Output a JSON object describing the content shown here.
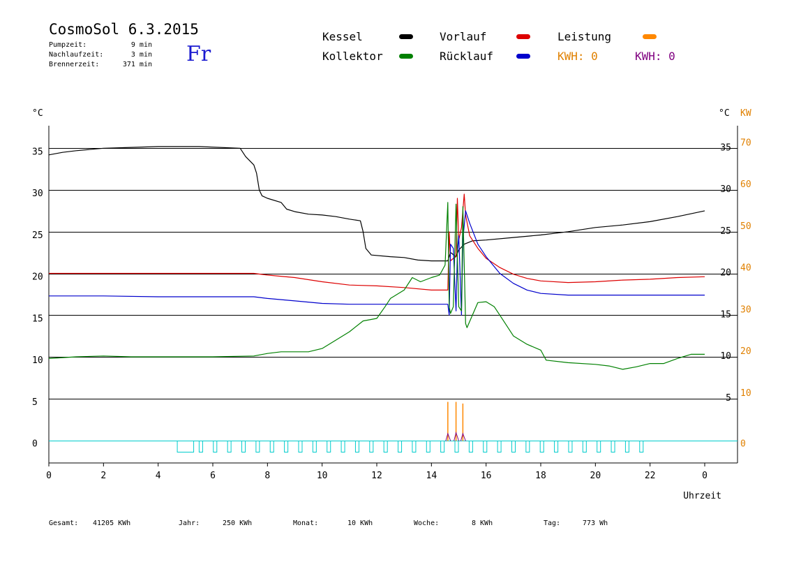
{
  "header": {
    "title": "CosmoSol 6.3.2015",
    "day": "Fr",
    "info": [
      {
        "label": "Pumpzeit:",
        "value": "9 min"
      },
      {
        "label": "Nachlaufzeit:",
        "value": "3 min"
      },
      {
        "label": "Brennerzeit:",
        "value": "371 min"
      }
    ]
  },
  "legend": {
    "kessel": {
      "label": "Kessel",
      "color": "#000000"
    },
    "vorlauf": {
      "label": "Vorlauf",
      "color": "#dd0000"
    },
    "leistung": {
      "label": "Leistung",
      "color": "#ff8800"
    },
    "kollektor": {
      "label": "Kollektor",
      "color": "#008000"
    },
    "ruecklauf": {
      "label": "Rücklauf",
      "color": "#0000cc"
    },
    "kwh1": {
      "label": "KWH: 0",
      "color": "#e08000"
    },
    "kwh2": {
      "label": "KWH: 0",
      "color": "#800080"
    }
  },
  "footer": [
    {
      "label": "Gesamt:",
      "value": "41205 KWh"
    },
    {
      "label": "Jahr:",
      "value": "250 KWh"
    },
    {
      "label": "Monat:",
      "value": "10 KWh"
    },
    {
      "label": "Woche:",
      "value": "8 KWh"
    },
    {
      "label": "Tag:",
      "value": "773 Wh"
    }
  ],
  "chart_data": {
    "type": "line",
    "xlabel": "Uhrzeit",
    "ylabel_left": "°C",
    "ylabel_right": "°C",
    "ylabel_right2": "KW",
    "xlim": [
      0,
      24
    ],
    "ylim": [
      -2.7,
      38
    ],
    "x_ticks": [
      "0",
      "2",
      "4",
      "6",
      "8",
      "10",
      "12",
      "14",
      "16",
      "18",
      "20",
      "22",
      "0"
    ],
    "y_ticks_left": [
      "0",
      "5",
      "10",
      "15",
      "20",
      "25",
      "30",
      "35"
    ],
    "y_ticks_right": [
      "5",
      "10",
      "15",
      "20",
      "25",
      "30",
      "35"
    ],
    "y_ticks_kw": [
      "0",
      "10",
      "20",
      "30",
      "40",
      "50",
      "60",
      "70"
    ],
    "grid_y": [
      0,
      5,
      10,
      15,
      20,
      25,
      30,
      35
    ],
    "series": [
      {
        "name": "Kessel",
        "color": "#000000",
        "points": [
          [
            0,
            34.2
          ],
          [
            0.5,
            34.5
          ],
          [
            1,
            34.7
          ],
          [
            2,
            35.0
          ],
          [
            3,
            35.1
          ],
          [
            4,
            35.2
          ],
          [
            5,
            35.2
          ],
          [
            5.5,
            35.2
          ],
          [
            7.0,
            35.0
          ],
          [
            7.2,
            34.0
          ],
          [
            7.5,
            33.0
          ],
          [
            7.6,
            32.0
          ],
          [
            7.7,
            30.0
          ],
          [
            7.8,
            29.3
          ],
          [
            8.0,
            29.0
          ],
          [
            8.5,
            28.5
          ],
          [
            8.7,
            27.7
          ],
          [
            9.0,
            27.4
          ],
          [
            9.5,
            27.1
          ],
          [
            10.0,
            27.0
          ],
          [
            10.5,
            26.8
          ],
          [
            11.0,
            26.5
          ],
          [
            11.4,
            26.3
          ],
          [
            11.5,
            25.0
          ],
          [
            11.6,
            23.0
          ],
          [
            11.8,
            22.2
          ],
          [
            12.5,
            22.0
          ],
          [
            13.0,
            21.9
          ],
          [
            13.5,
            21.6
          ],
          [
            14.0,
            21.5
          ],
          [
            14.6,
            21.5
          ],
          [
            14.7,
            22.5
          ],
          [
            14.9,
            22.0
          ],
          [
            15.0,
            22.8
          ],
          [
            15.2,
            23.5
          ],
          [
            15.5,
            23.9
          ],
          [
            16.0,
            24.0
          ],
          [
            17.0,
            24.3
          ],
          [
            18.0,
            24.6
          ],
          [
            19.0,
            25.0
          ],
          [
            20.0,
            25.5
          ],
          [
            21.0,
            25.8
          ],
          [
            22.0,
            26.2
          ],
          [
            23.0,
            26.8
          ],
          [
            24.0,
            27.5
          ]
        ]
      },
      {
        "name": "Vorlauf",
        "color": "#dd0000",
        "points": [
          [
            0,
            20.0
          ],
          [
            2,
            20.0
          ],
          [
            4,
            20.0
          ],
          [
            6,
            20.0
          ],
          [
            7.5,
            20.0
          ],
          [
            8,
            19.8
          ],
          [
            9,
            19.5
          ],
          [
            10,
            19.0
          ],
          [
            11,
            18.6
          ],
          [
            12,
            18.5
          ],
          [
            13,
            18.3
          ],
          [
            14,
            18.0
          ],
          [
            14.6,
            18.0
          ],
          [
            14.65,
            25.0
          ],
          [
            14.7,
            21.5
          ],
          [
            14.8,
            21.8
          ],
          [
            14.9,
            22.0
          ],
          [
            14.95,
            29.0
          ],
          [
            15.0,
            24.0
          ],
          [
            15.1,
            25.5
          ],
          [
            15.2,
            29.5
          ],
          [
            15.25,
            27.0
          ],
          [
            15.4,
            24.5
          ],
          [
            15.7,
            23.0
          ],
          [
            16,
            21.8
          ],
          [
            16.5,
            20.7
          ],
          [
            17,
            19.9
          ],
          [
            17.5,
            19.4
          ],
          [
            18,
            19.1
          ],
          [
            19,
            18.9
          ],
          [
            20,
            19.0
          ],
          [
            21,
            19.2
          ],
          [
            22,
            19.3
          ],
          [
            23,
            19.5
          ],
          [
            24,
            19.6
          ]
        ]
      },
      {
        "name": "Rücklauf",
        "color": "#0000cc",
        "points": [
          [
            0,
            17.3
          ],
          [
            2,
            17.3
          ],
          [
            4,
            17.2
          ],
          [
            6,
            17.2
          ],
          [
            7.5,
            17.2
          ],
          [
            8,
            17.0
          ],
          [
            9,
            16.7
          ],
          [
            10,
            16.4
          ],
          [
            11,
            16.3
          ],
          [
            12,
            16.3
          ],
          [
            13,
            16.3
          ],
          [
            14,
            16.3
          ],
          [
            14.6,
            16.3
          ],
          [
            14.65,
            15.0
          ],
          [
            14.7,
            23.5
          ],
          [
            14.8,
            23.0
          ],
          [
            14.9,
            15.5
          ],
          [
            14.95,
            22.5
          ],
          [
            15.0,
            24.5
          ],
          [
            15.1,
            15.0
          ],
          [
            15.15,
            24.0
          ],
          [
            15.25,
            27.5
          ],
          [
            15.4,
            26.0
          ],
          [
            15.7,
            23.5
          ],
          [
            16,
            22.0
          ],
          [
            16.5,
            20.0
          ],
          [
            17,
            18.8
          ],
          [
            17.5,
            18.0
          ],
          [
            18,
            17.6
          ],
          [
            19,
            17.4
          ],
          [
            20,
            17.4
          ],
          [
            21,
            17.4
          ],
          [
            22,
            17.4
          ],
          [
            23,
            17.4
          ],
          [
            24,
            17.4
          ]
        ]
      },
      {
        "name": "Kollektor",
        "color": "#008000",
        "points": [
          [
            0,
            9.8
          ],
          [
            1,
            10.0
          ],
          [
            2,
            10.1
          ],
          [
            3,
            10.0
          ],
          [
            4,
            10.0
          ],
          [
            5,
            10.0
          ],
          [
            6,
            10.0
          ],
          [
            7.5,
            10.1
          ],
          [
            8,
            10.4
          ],
          [
            8.5,
            10.6
          ],
          [
            9,
            10.6
          ],
          [
            9.5,
            10.6
          ],
          [
            10,
            11.0
          ],
          [
            10.5,
            12.0
          ],
          [
            11,
            13.0
          ],
          [
            11.5,
            14.3
          ],
          [
            12,
            14.6
          ],
          [
            12.3,
            16.0
          ],
          [
            12.5,
            17.0
          ],
          [
            13.0,
            18.0
          ],
          [
            13.3,
            19.5
          ],
          [
            13.6,
            19.0
          ],
          [
            14.0,
            19.5
          ],
          [
            14.3,
            19.8
          ],
          [
            14.5,
            21.0
          ],
          [
            14.6,
            28.5
          ],
          [
            14.65,
            16.0
          ],
          [
            14.7,
            15.2
          ],
          [
            14.8,
            16.0
          ],
          [
            14.9,
            28.3
          ],
          [
            14.95,
            22.0
          ],
          [
            15.0,
            16.0
          ],
          [
            15.1,
            15.5
          ],
          [
            15.15,
            28.0
          ],
          [
            15.25,
            14.0
          ],
          [
            15.3,
            13.5
          ],
          [
            15.5,
            15.0
          ],
          [
            15.7,
            16.5
          ],
          [
            16,
            16.6
          ],
          [
            16.3,
            16.0
          ],
          [
            16.6,
            14.5
          ],
          [
            17,
            12.5
          ],
          [
            17.5,
            11.5
          ],
          [
            18,
            10.8
          ],
          [
            18.2,
            9.6
          ],
          [
            19,
            9.3
          ],
          [
            20,
            9.1
          ],
          [
            20.5,
            8.9
          ],
          [
            21,
            8.5
          ],
          [
            21.5,
            8.8
          ],
          [
            22,
            9.2
          ],
          [
            22.5,
            9.2
          ],
          [
            23,
            9.8
          ],
          [
            23.5,
            10.3
          ],
          [
            24,
            10.3
          ]
        ]
      }
    ],
    "power_spikes": [
      {
        "x": 14.6,
        "orange": 4.6,
        "purple": 0.8
      },
      {
        "x": 14.9,
        "orange": 4.6,
        "purple": 0.9
      },
      {
        "x": 15.15,
        "orange": 4.4,
        "purple": 0.8
      }
    ],
    "pump_line": {
      "color": "#00cccc",
      "value": 0,
      "marks_start": 4.7,
      "marks_end": 21.8,
      "rect": [
        4.7,
        5.3
      ]
    }
  }
}
